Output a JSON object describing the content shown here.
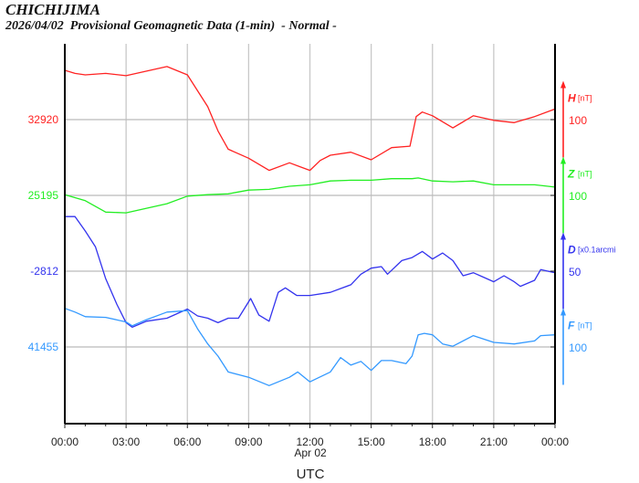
{
  "header": {
    "station": "CHICHIJIMA",
    "subtitle": "2026/04/02  Provisional Geomagnetic Data (1-min)  - Normal -"
  },
  "chart_data": {
    "type": "line",
    "title": "CHICHIJIMA",
    "subtitle": "2026/04/02  Provisional Geomagnetic Data (1-min)  - Normal -",
    "xlabel": "UTC",
    "date_label": "Apr 02",
    "xlim": [
      0,
      24
    ],
    "x_ticks": [
      "00:00",
      "03:00",
      "06:00",
      "09:00",
      "12:00",
      "15:00",
      "18:00",
      "21:00",
      "00:00"
    ],
    "grid": true,
    "series": [
      {
        "name": "H",
        "unit": "[nT]",
        "color": "#ff2222",
        "ref": 32920,
        "ref_label": "32920",
        "scale": 100,
        "scale_label": "100",
        "points": [
          [
            0,
            32985
          ],
          [
            0.5,
            32981
          ],
          [
            1,
            32979
          ],
          [
            2,
            32981
          ],
          [
            3,
            32978
          ],
          [
            4,
            32984
          ],
          [
            5,
            32990
          ],
          [
            6,
            32979
          ],
          [
            7,
            32937
          ],
          [
            7.5,
            32905
          ],
          [
            8,
            32881
          ],
          [
            9,
            32869
          ],
          [
            10,
            32853
          ],
          [
            11,
            32863
          ],
          [
            11.5,
            32858
          ],
          [
            12,
            32853
          ],
          [
            12.5,
            32866
          ],
          [
            13,
            32873
          ],
          [
            14,
            32877
          ],
          [
            15,
            32867
          ],
          [
            16,
            32883
          ],
          [
            16.9,
            32885
          ],
          [
            17.2,
            32924
          ],
          [
            17.5,
            32930
          ],
          [
            18,
            32925
          ],
          [
            19,
            32909
          ],
          [
            20,
            32925
          ],
          [
            21,
            32919
          ],
          [
            22,
            32916
          ],
          [
            23,
            32924
          ],
          [
            24,
            32934
          ]
        ]
      },
      {
        "name": "Z",
        "unit": "[nT]",
        "color": "#22ee22",
        "ref": 25195,
        "ref_label": "25195",
        "scale": 100,
        "scale_label": "100",
        "points": [
          [
            0,
            25196
          ],
          [
            1,
            25188
          ],
          [
            2,
            25173
          ],
          [
            3,
            25172
          ],
          [
            4,
            25178
          ],
          [
            5,
            25184
          ],
          [
            6,
            25194
          ],
          [
            7,
            25196
          ],
          [
            8,
            25197
          ],
          [
            9,
            25202
          ],
          [
            10,
            25203
          ],
          [
            11,
            25207
          ],
          [
            12,
            25209
          ],
          [
            13,
            25214
          ],
          [
            14,
            25215
          ],
          [
            15,
            25215
          ],
          [
            16,
            25217
          ],
          [
            17,
            25217
          ],
          [
            17.3,
            25218
          ],
          [
            18,
            25214
          ],
          [
            19,
            25213
          ],
          [
            20,
            25214
          ],
          [
            21,
            25209
          ],
          [
            22,
            25209
          ],
          [
            23,
            25209
          ],
          [
            24,
            25206
          ]
        ]
      },
      {
        "name": "D",
        "unit": "[x0.1arcmi",
        "color": "#3333ee",
        "ref": -2812,
        "ref_label": "-2812",
        "scale": 50,
        "scale_label": "50",
        "points": [
          [
            0,
            -2776
          ],
          [
            0.5,
            -2776
          ],
          [
            1,
            -2785.5
          ],
          [
            1.5,
            -2796
          ],
          [
            2,
            -2817
          ],
          [
            2.55,
            -2834
          ],
          [
            3,
            -2846
          ],
          [
            3.3,
            -2849
          ],
          [
            4,
            -2845
          ],
          [
            5,
            -2843
          ],
          [
            6,
            -2837
          ],
          [
            6.5,
            -2841.5
          ],
          [
            7,
            -2843
          ],
          [
            7.5,
            -2846
          ],
          [
            8,
            -2843
          ],
          [
            8.5,
            -2843
          ],
          [
            9.1,
            -2830
          ],
          [
            9.5,
            -2841
          ],
          [
            10,
            -2845
          ],
          [
            10.45,
            -2826
          ],
          [
            10.8,
            -2823
          ],
          [
            11.35,
            -2828
          ],
          [
            12,
            -2828
          ],
          [
            13,
            -2826
          ],
          [
            14,
            -2821
          ],
          [
            14.5,
            -2814
          ],
          [
            15,
            -2810
          ],
          [
            15.5,
            -2809
          ],
          [
            15.8,
            -2814
          ],
          [
            16.5,
            -2805
          ],
          [
            17,
            -2803
          ],
          [
            17.5,
            -2799
          ],
          [
            18,
            -2804
          ],
          [
            18.5,
            -2800
          ],
          [
            19,
            -2805
          ],
          [
            19.5,
            -2815
          ],
          [
            20,
            -2813
          ],
          [
            20.5,
            -2816
          ],
          [
            21,
            -2819
          ],
          [
            21.5,
            -2815
          ],
          [
            22,
            -2819
          ],
          [
            22.3,
            -2822
          ],
          [
            23,
            -2818
          ],
          [
            23.3,
            -2811
          ],
          [
            24,
            -2813
          ]
        ]
      },
      {
        "name": "F",
        "unit": "[nT]",
        "color": "#3399ff",
        "ref": 41455,
        "ref_label": "41455",
        "scale": 100,
        "scale_label": "100",
        "points": [
          [
            0,
            41506
          ],
          [
            0.5,
            41501
          ],
          [
            1,
            41495
          ],
          [
            2,
            41494
          ],
          [
            3,
            41488
          ],
          [
            3.3,
            41483
          ],
          [
            4,
            41491
          ],
          [
            5,
            41501
          ],
          [
            6,
            41503
          ],
          [
            6.5,
            41479
          ],
          [
            7,
            41459
          ],
          [
            7.5,
            41443
          ],
          [
            8,
            41422
          ],
          [
            9,
            41415
          ],
          [
            10,
            41404
          ],
          [
            11,
            41415
          ],
          [
            11.4,
            41422
          ],
          [
            12,
            41409
          ],
          [
            13,
            41422
          ],
          [
            13.5,
            41441
          ],
          [
            14,
            41431
          ],
          [
            14.5,
            41436
          ],
          [
            15,
            41424
          ],
          [
            15.5,
            41437
          ],
          [
            16,
            41437
          ],
          [
            16.7,
            41433
          ],
          [
            17,
            41443
          ],
          [
            17.3,
            41471
          ],
          [
            17.6,
            41473
          ],
          [
            18,
            41471
          ],
          [
            18.5,
            41459
          ],
          [
            19,
            41456
          ],
          [
            20,
            41470
          ],
          [
            21,
            41461
          ],
          [
            22,
            41459
          ],
          [
            23,
            41463
          ],
          [
            23.3,
            41470
          ],
          [
            24,
            41471
          ]
        ]
      }
    ]
  }
}
